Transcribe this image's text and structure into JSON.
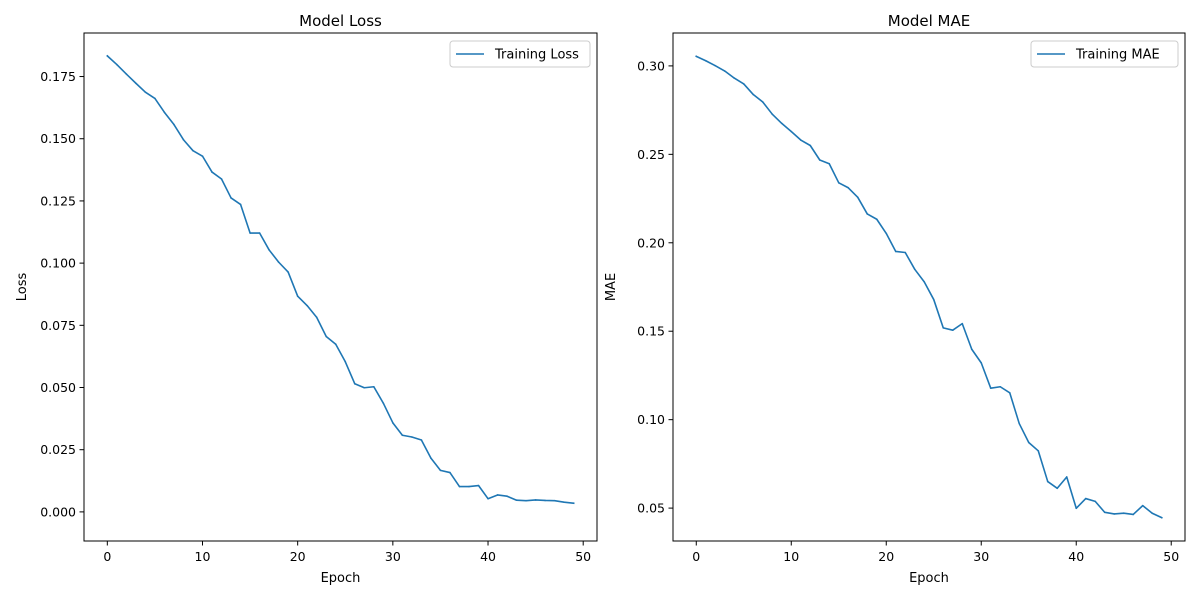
{
  "chart_data": [
    {
      "type": "line",
      "title": "Model Loss",
      "xlabel": "Epoch",
      "ylabel": "Loss",
      "xlim": [
        -2.45,
        51.45
      ],
      "ylim": [
        -0.0117,
        0.1925
      ],
      "xticks": [
        0,
        10,
        20,
        30,
        40,
        50
      ],
      "xtick_labels": [
        "0",
        "10",
        "20",
        "30",
        "40",
        "50"
      ],
      "yticks": [
        0.0,
        0.025,
        0.05,
        0.075,
        0.1,
        0.125,
        0.15,
        0.175
      ],
      "ytick_labels": [
        "0.000",
        "0.025",
        "0.050",
        "0.075",
        "0.100",
        "0.125",
        "0.150",
        "0.175"
      ],
      "grid": false,
      "legend": "top-right",
      "color": "#1f77b4",
      "series": [
        {
          "name": "Training Loss",
          "x": [
            0,
            1,
            2,
            3,
            4,
            5,
            6,
            7,
            8,
            9,
            10,
            11,
            12,
            13,
            14,
            15,
            16,
            17,
            18,
            19,
            20,
            21,
            22,
            23,
            24,
            25,
            26,
            27,
            28,
            29,
            30,
            31,
            32,
            33,
            34,
            35,
            36,
            37,
            38,
            39,
            40,
            41,
            42,
            43,
            44,
            45,
            46,
            47,
            48,
            49
          ],
          "values": [
            0.1833,
            0.1798,
            0.176,
            0.1723,
            0.1687,
            0.1662,
            0.1606,
            0.1557,
            0.1496,
            0.1452,
            0.143,
            0.1366,
            0.1338,
            0.1262,
            0.1236,
            0.1121,
            0.1121,
            0.1053,
            0.1004,
            0.0964,
            0.0867,
            0.0829,
            0.0782,
            0.0705,
            0.0674,
            0.0604,
            0.0515,
            0.0499,
            0.0503,
            0.0437,
            0.0358,
            0.0308,
            0.0301,
            0.0289,
            0.0216,
            0.0167,
            0.0158,
            0.0102,
            0.0102,
            0.0106,
            0.0053,
            0.0068,
            0.0063,
            0.0047,
            0.0045,
            0.0048,
            0.0046,
            0.0045,
            0.0039,
            0.0035
          ]
        }
      ]
    },
    {
      "type": "line",
      "title": "Model MAE",
      "xlabel": "Epoch",
      "ylabel": "MAE",
      "xlim": [
        -2.45,
        51.45
      ],
      "ylim": [
        0.0314,
        0.3186
      ],
      "xticks": [
        0,
        10,
        20,
        30,
        40,
        50
      ],
      "xtick_labels": [
        "0",
        "10",
        "20",
        "30",
        "40",
        "50"
      ],
      "yticks": [
        0.05,
        0.1,
        0.15,
        0.2,
        0.25,
        0.3
      ],
      "ytick_labels": [
        "0.05",
        "0.10",
        "0.15",
        "0.20",
        "0.25",
        "0.30"
      ],
      "grid": false,
      "legend": "top-right",
      "color": "#1f77b4",
      "series": [
        {
          "name": "Training MAE",
          "x": [
            0,
            1,
            2,
            3,
            4,
            5,
            6,
            7,
            8,
            9,
            10,
            11,
            12,
            13,
            14,
            15,
            16,
            17,
            18,
            19,
            20,
            21,
            22,
            23,
            24,
            25,
            26,
            27,
            28,
            29,
            30,
            31,
            32,
            33,
            34,
            35,
            36,
            37,
            38,
            39,
            40,
            41,
            42,
            43,
            44,
            45,
            46,
            47,
            48,
            49
          ],
          "values": [
            0.3054,
            0.3029,
            0.3001,
            0.2971,
            0.2931,
            0.2898,
            0.2838,
            0.2796,
            0.2727,
            0.2675,
            0.2629,
            0.2581,
            0.255,
            0.2468,
            0.2447,
            0.2339,
            0.2311,
            0.2257,
            0.2163,
            0.2133,
            0.2053,
            0.1951,
            0.1945,
            0.185,
            0.1779,
            0.1679,
            0.1519,
            0.1506,
            0.1543,
            0.1398,
            0.1321,
            0.1178,
            0.1186,
            0.1152,
            0.0978,
            0.0871,
            0.0824,
            0.065,
            0.0612,
            0.0676,
            0.0499,
            0.0554,
            0.0538,
            0.0476,
            0.0467,
            0.0471,
            0.0464,
            0.0514,
            0.0471,
            0.0446
          ]
        }
      ]
    }
  ]
}
